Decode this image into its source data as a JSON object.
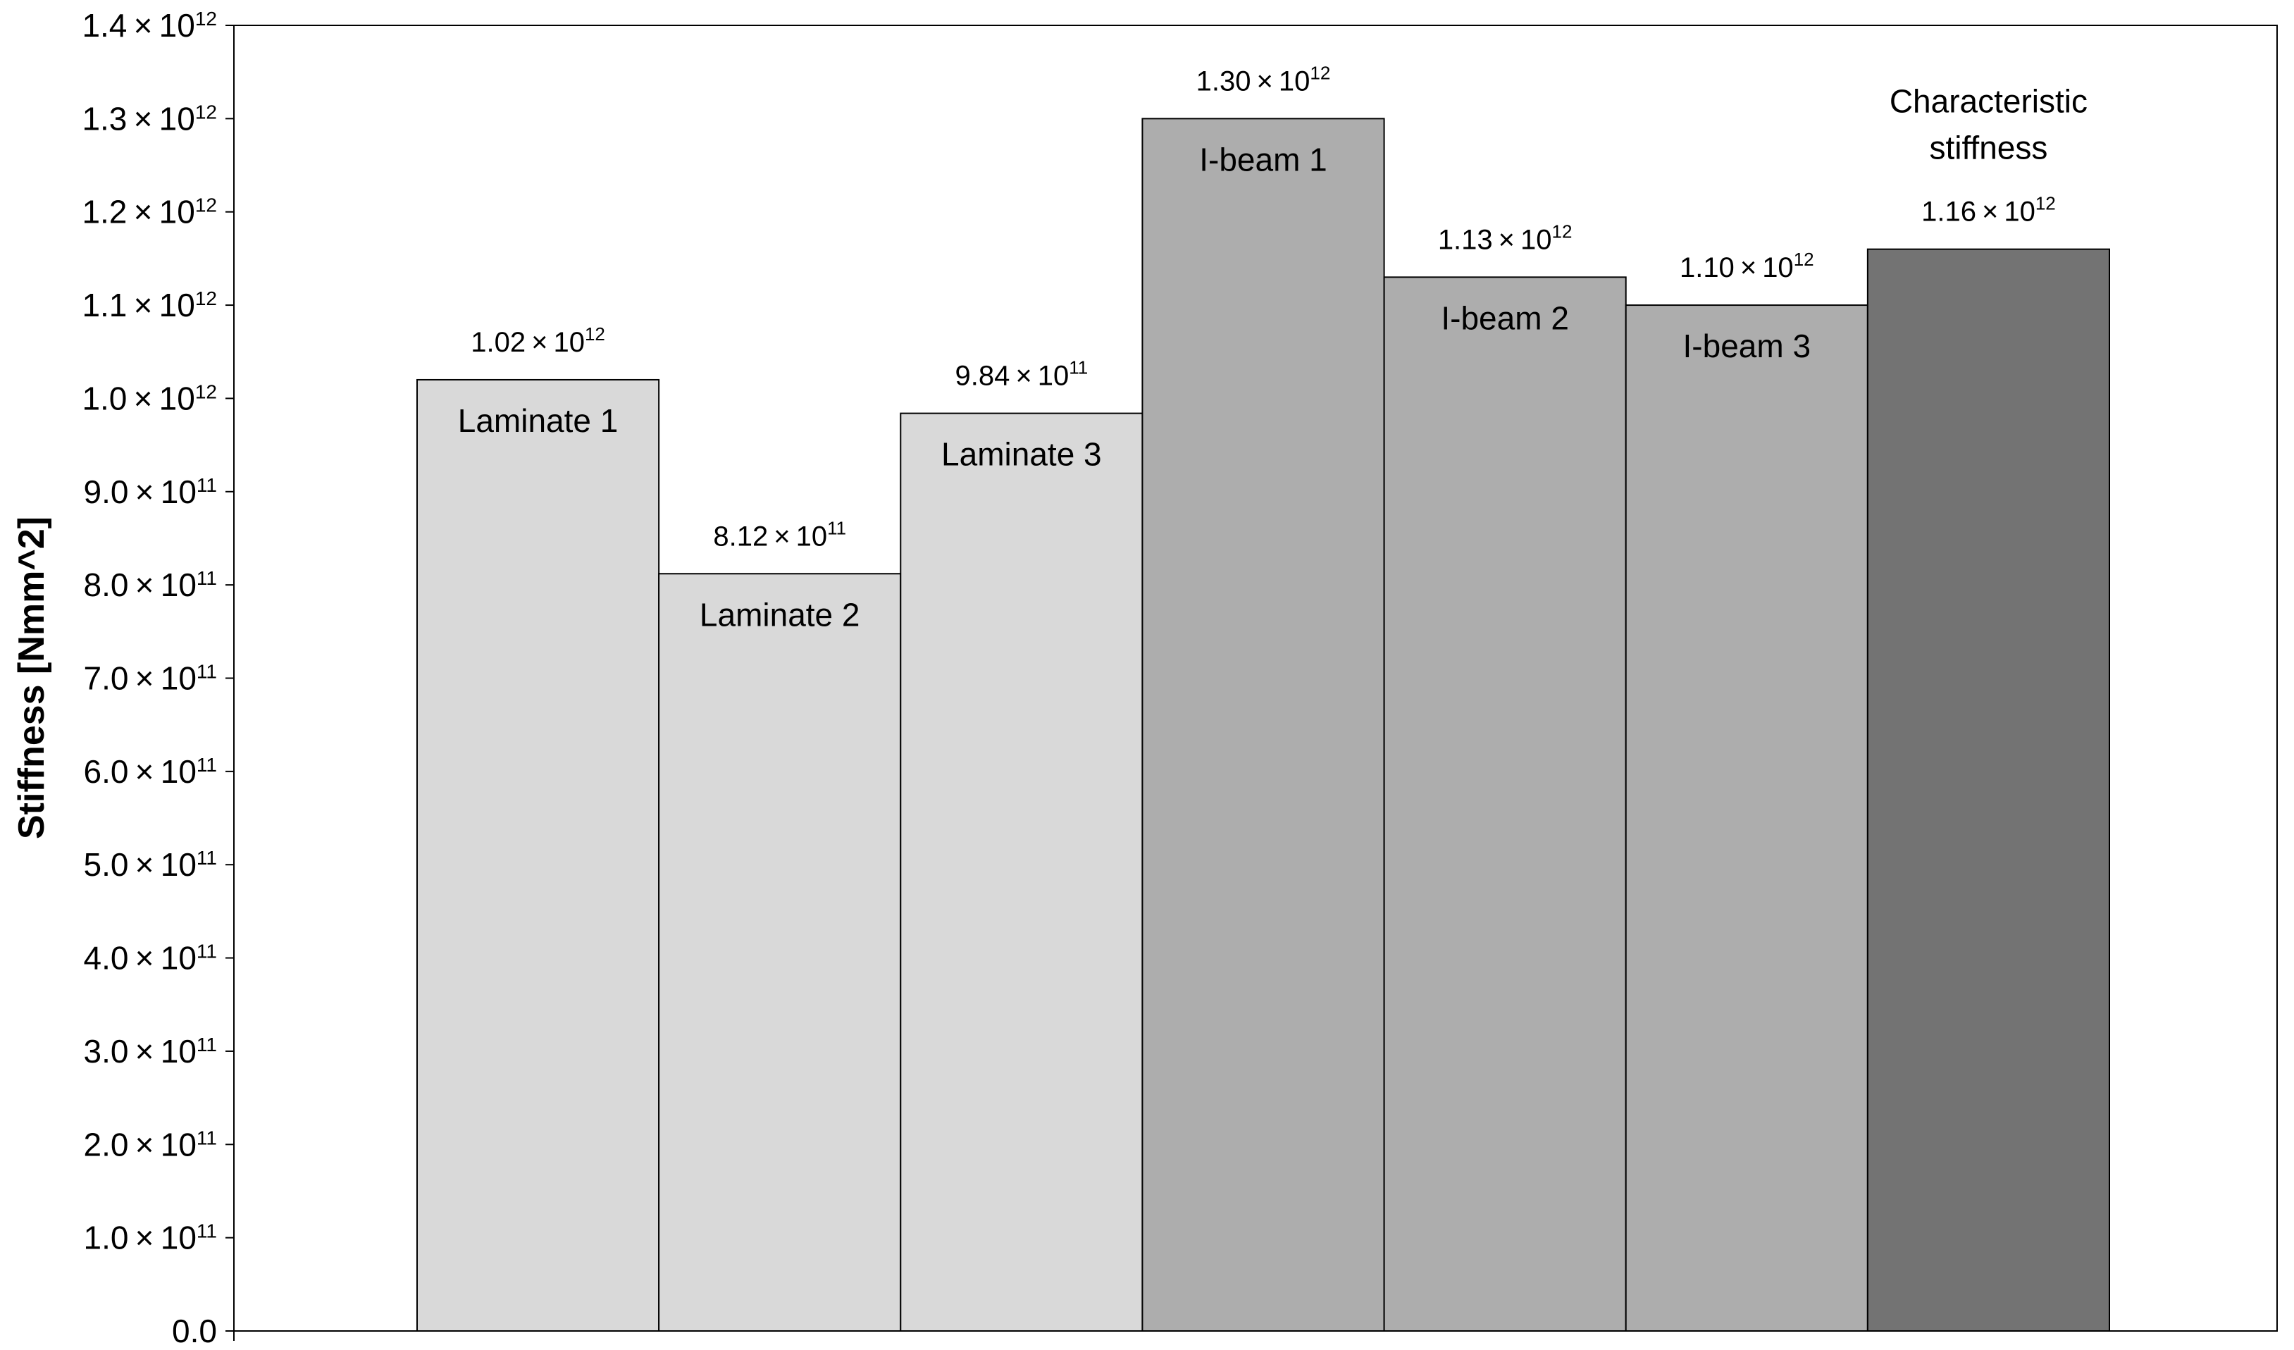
{
  "chart_data": {
    "type": "bar",
    "title": "",
    "xlabel": "",
    "ylabel": "Stiffness [Nmm^2]",
    "ylim": [
      0,
      1400000000000.0
    ],
    "grid": false,
    "legend": "none",
    "categories": [
      "Laminate 1",
      "Laminate 2",
      "Laminate 3",
      "I-beam 1",
      "I-beam 2",
      "I-beam 3",
      "Characteristic stiffness"
    ],
    "values": [
      1020000000000.0,
      812000000000.0,
      984000000000.0,
      1300000000000.0,
      1130000000000.0,
      1100000000000.0,
      1160000000000.0
    ],
    "value_labels": [
      {
        "mantissa": "1.02",
        "exp": "12"
      },
      {
        "mantissa": "8.12",
        "exp": "11"
      },
      {
        "mantissa": "9.84",
        "exp": "11"
      },
      {
        "mantissa": "1.30",
        "exp": "12"
      },
      {
        "mantissa": "1.13",
        "exp": "12"
      },
      {
        "mantissa": "1.10",
        "exp": "12"
      },
      {
        "mantissa": "1.16",
        "exp": "12"
      }
    ],
    "label_inside": [
      true,
      true,
      true,
      true,
      true,
      true,
      false
    ],
    "bar_colors": [
      "#d9d9d9",
      "#d9d9d9",
      "#d9d9d9",
      "#adadad",
      "#adadad",
      "#adadad",
      "#737373"
    ],
    "y_ticks": [
      {
        "value": 0,
        "mantissa": "0.0",
        "exp": ""
      },
      {
        "value": 100000000000.0,
        "mantissa": "1.0",
        "exp": "11"
      },
      {
        "value": 200000000000.0,
        "mantissa": "2.0",
        "exp": "11"
      },
      {
        "value": 300000000000.0,
        "mantissa": "3.0",
        "exp": "11"
      },
      {
        "value": 400000000000.0,
        "mantissa": "4.0",
        "exp": "11"
      },
      {
        "value": 500000000000.0,
        "mantissa": "5.0",
        "exp": "11"
      },
      {
        "value": 600000000000.0,
        "mantissa": "6.0",
        "exp": "11"
      },
      {
        "value": 700000000000.0,
        "mantissa": "7.0",
        "exp": "11"
      },
      {
        "value": 800000000000.0,
        "mantissa": "8.0",
        "exp": "11"
      },
      {
        "value": 900000000000.0,
        "mantissa": "9.0",
        "exp": "11"
      },
      {
        "value": 1000000000000.0,
        "mantissa": "1.0",
        "exp": "12"
      },
      {
        "value": 1100000000000.0,
        "mantissa": "1.1",
        "exp": "12"
      },
      {
        "value": 1200000000000.0,
        "mantissa": "1.2",
        "exp": "12"
      },
      {
        "value": 1300000000000.0,
        "mantissa": "1.3",
        "exp": "12"
      },
      {
        "value": 1400000000000.0,
        "mantissa": "1.4",
        "exp": "12"
      }
    ]
  }
}
